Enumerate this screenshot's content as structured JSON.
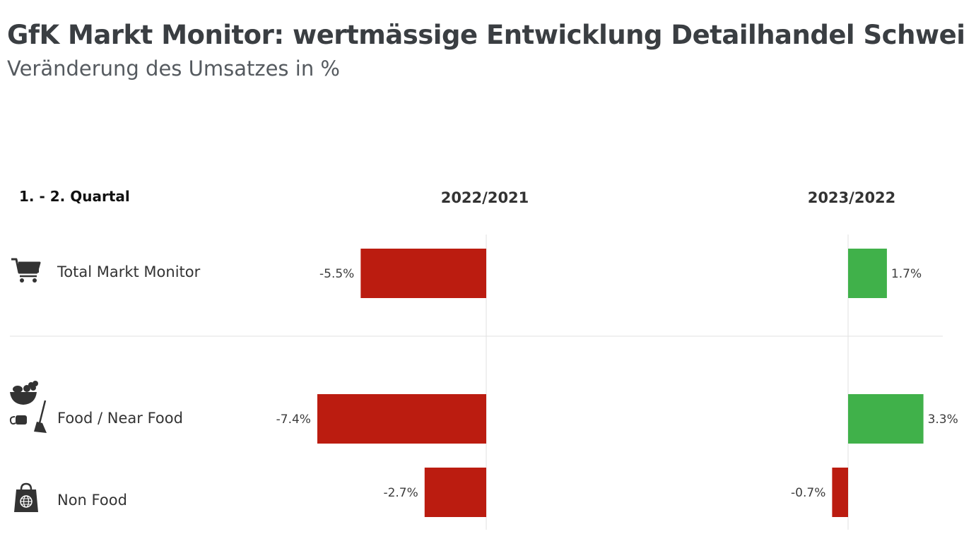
{
  "title": "GfK Markt Monitor: wertmässige Entwicklung Detailhandel Schweiz",
  "subtitle": "Veränderung des Umsatzes in %",
  "period_label": "1. - 2. Quartal",
  "colors": {
    "negative": "#bb1c10",
    "positive": "#40b14a",
    "text": "#3c3c3c",
    "grid": "#e2e2e2"
  },
  "icons": {
    "total": "shopping-cart-icon",
    "food": "fruit-basket-and-cleaning-icon",
    "nonfood": "shopping-bag-globe-icon"
  },
  "chart_data": {
    "type": "bar",
    "orientation": "horizontal",
    "categories": [
      "Total Markt Monitor",
      "Food / Near Food",
      "Non Food"
    ],
    "series": [
      {
        "name": "2022/2021",
        "values": [
          -5.5,
          -7.4,
          -2.7
        ],
        "labels": [
          "-5.5%",
          "-7.4%",
          "-2.7%"
        ]
      },
      {
        "name": "2023/2022",
        "values": [
          1.7,
          3.3,
          -0.7
        ],
        "labels": [
          "1.7%",
          "3.3%",
          "-0.7%"
        ]
      }
    ],
    "unit": "%",
    "grid": false
  }
}
